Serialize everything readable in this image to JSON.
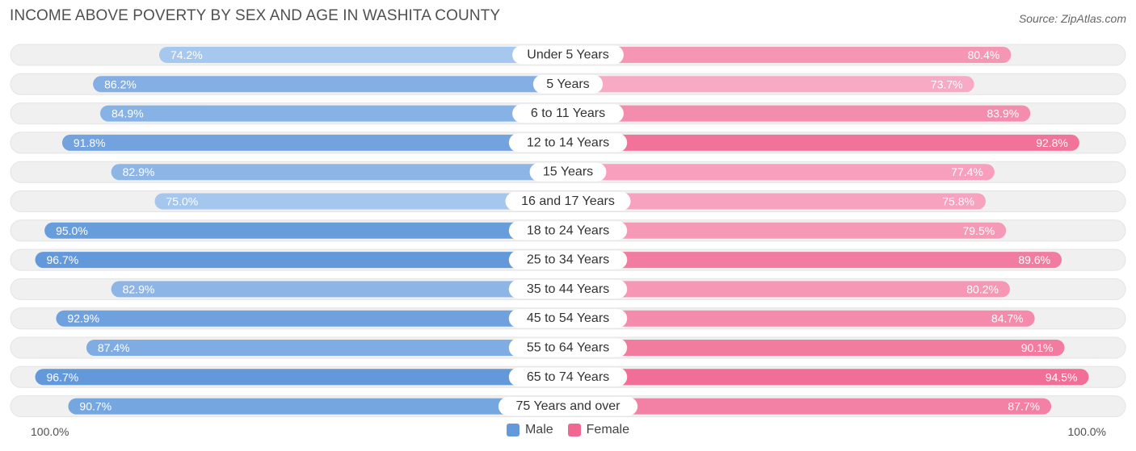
{
  "title": "INCOME ABOVE POVERTY BY SEX AND AGE IN WASHITA COUNTY",
  "source": "Source: ZipAtlas.com",
  "axis": {
    "left_label": "100.0%",
    "right_label": "100.0%"
  },
  "legend": {
    "male": "Male",
    "female": "Female"
  },
  "colors": {
    "male_light": "#a9c9ee",
    "male_dark": "#6399db",
    "female_light": "#f8a9c4",
    "female_dark": "#f06892",
    "track": "#f0f0f0"
  },
  "chart_data": {
    "type": "bar",
    "orientation": "horizontal-diverging",
    "title": "INCOME ABOVE POVERTY BY SEX AND AGE IN WASHITA COUNTY",
    "xlim": [
      0,
      100
    ],
    "unit": "%",
    "categories": [
      "Under 5 Years",
      "5 Years",
      "6 to 11 Years",
      "12 to 14 Years",
      "15 Years",
      "16 and 17 Years",
      "18 to 24 Years",
      "25 to 34 Years",
      "35 to 44 Years",
      "45 to 54 Years",
      "55 to 64 Years",
      "65 to 74 Years",
      "75 Years and over"
    ],
    "series": [
      {
        "name": "Male",
        "side": "left",
        "values": [
          74.2,
          86.2,
          84.9,
          91.8,
          82.9,
          75.0,
          95.0,
          96.7,
          82.9,
          92.9,
          87.4,
          96.7,
          90.7
        ]
      },
      {
        "name": "Female",
        "side": "right",
        "values": [
          80.4,
          73.7,
          83.9,
          92.8,
          77.4,
          75.8,
          79.5,
          89.6,
          80.2,
          84.7,
          90.1,
          94.5,
          87.7
        ]
      }
    ],
    "legend_position": "bottom-center"
  }
}
